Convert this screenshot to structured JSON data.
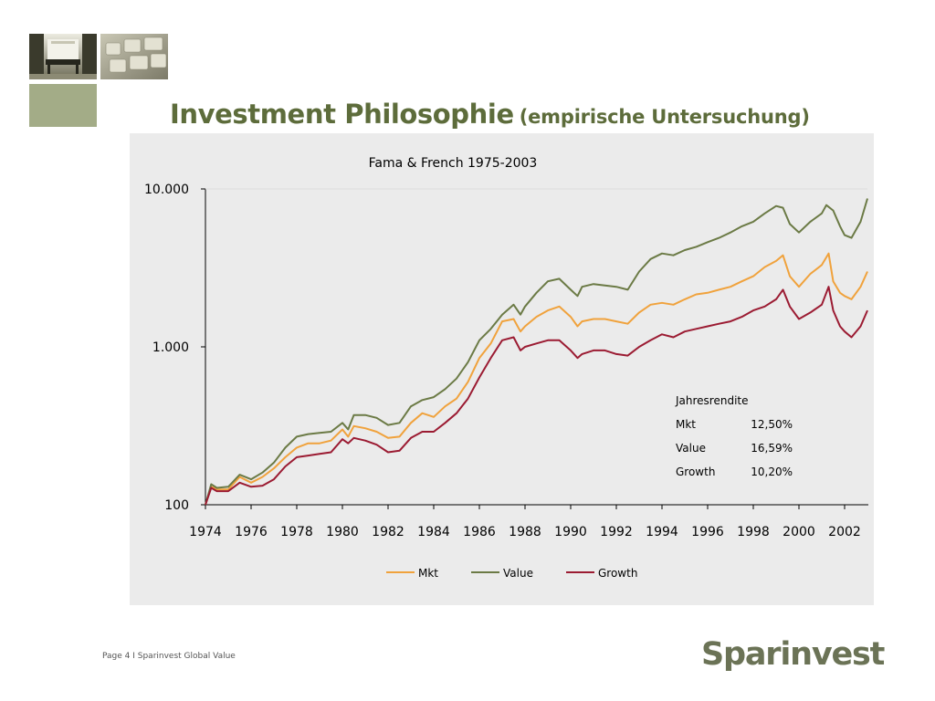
{
  "header": {
    "title": "Investment Philosophie",
    "subtitle": "(empirische Untersuchung)"
  },
  "colors": {
    "title": "#5d6c3b",
    "tile_green": "#a3ac87",
    "panel_bg": "#ebebeb",
    "brand": "#6b7356"
  },
  "chart_data": {
    "type": "line",
    "title": "Fama & French 1975-2003",
    "xlabel": "",
    "ylabel": "",
    "y_scale": "log",
    "ylim": [
      100,
      10000
    ],
    "xlim": [
      1974,
      2003
    ],
    "y_ticks": [
      100,
      1000,
      10000
    ],
    "y_tick_labels": [
      "100",
      "1.000",
      "10.000"
    ],
    "x_ticks": [
      1974,
      1976,
      1978,
      1980,
      1982,
      1984,
      1986,
      1988,
      1990,
      1992,
      1994,
      1996,
      1998,
      2000,
      2002
    ],
    "x_tick_labels": [
      "1974",
      "1976",
      "1978",
      "1980",
      "1982",
      "1984",
      "1986",
      "1988",
      "1990",
      "1992",
      "1994",
      "1996",
      "1998",
      "2000",
      "2002"
    ],
    "grid": false,
    "legend_position": "bottom",
    "series": [
      {
        "name": "Mkt",
        "color": "#f0a23c",
        "points": [
          [
            1974.0,
            100
          ],
          [
            1974.25,
            130
          ],
          [
            1974.5,
            125
          ],
          [
            1975.0,
            125
          ],
          [
            1975.5,
            150
          ],
          [
            1976.0,
            138
          ],
          [
            1976.5,
            150
          ],
          [
            1977.0,
            170
          ],
          [
            1977.5,
            200
          ],
          [
            1978.0,
            230
          ],
          [
            1978.5,
            245
          ],
          [
            1979.0,
            245
          ],
          [
            1979.5,
            255
          ],
          [
            1980.0,
            300
          ],
          [
            1980.25,
            270
          ],
          [
            1980.5,
            315
          ],
          [
            1981.0,
            305
          ],
          [
            1981.5,
            290
          ],
          [
            1982.0,
            265
          ],
          [
            1982.5,
            270
          ],
          [
            1983.0,
            330
          ],
          [
            1983.5,
            380
          ],
          [
            1984.0,
            360
          ],
          [
            1984.5,
            420
          ],
          [
            1985.0,
            470
          ],
          [
            1985.5,
            600
          ],
          [
            1986.0,
            850
          ],
          [
            1986.5,
            1050
          ],
          [
            1987.0,
            1450
          ],
          [
            1987.5,
            1500
          ],
          [
            1987.8,
            1250
          ],
          [
            1988.0,
            1350
          ],
          [
            1988.5,
            1550
          ],
          [
            1989.0,
            1700
          ],
          [
            1989.5,
            1800
          ],
          [
            1990.0,
            1550
          ],
          [
            1990.3,
            1350
          ],
          [
            1990.5,
            1450
          ],
          [
            1991.0,
            1500
          ],
          [
            1991.5,
            1500
          ],
          [
            1992.0,
            1450
          ],
          [
            1992.5,
            1400
          ],
          [
            1993.0,
            1650
          ],
          [
            1993.5,
            1850
          ],
          [
            1994.0,
            1900
          ],
          [
            1994.5,
            1850
          ],
          [
            1995.0,
            2000
          ],
          [
            1995.5,
            2150
          ],
          [
            1996.0,
            2200
          ],
          [
            1996.5,
            2300
          ],
          [
            1997.0,
            2400
          ],
          [
            1997.5,
            2600
          ],
          [
            1998.0,
            2800
          ],
          [
            1998.5,
            3200
          ],
          [
            1999.0,
            3500
          ],
          [
            1999.3,
            3800
          ],
          [
            1999.6,
            2800
          ],
          [
            2000.0,
            2400
          ],
          [
            2000.5,
            2900
          ],
          [
            2001.0,
            3300
          ],
          [
            2001.3,
            3900
          ],
          [
            2001.5,
            2600
          ],
          [
            2001.8,
            2200
          ],
          [
            2002.0,
            2100
          ],
          [
            2002.3,
            2000
          ],
          [
            2002.7,
            2400
          ],
          [
            2003.0,
            3000
          ]
        ]
      },
      {
        "name": "Value",
        "color": "#6b7a45",
        "points": [
          [
            1974.0,
            100
          ],
          [
            1974.25,
            135
          ],
          [
            1974.5,
            128
          ],
          [
            1975.0,
            130
          ],
          [
            1975.5,
            155
          ],
          [
            1976.0,
            145
          ],
          [
            1976.5,
            160
          ],
          [
            1977.0,
            185
          ],
          [
            1977.5,
            230
          ],
          [
            1978.0,
            270
          ],
          [
            1978.5,
            280
          ],
          [
            1979.0,
            285
          ],
          [
            1979.5,
            290
          ],
          [
            1980.0,
            330
          ],
          [
            1980.25,
            300
          ],
          [
            1980.5,
            370
          ],
          [
            1981.0,
            370
          ],
          [
            1981.5,
            355
          ],
          [
            1982.0,
            320
          ],
          [
            1982.5,
            330
          ],
          [
            1983.0,
            420
          ],
          [
            1983.5,
            460
          ],
          [
            1984.0,
            480
          ],
          [
            1984.5,
            540
          ],
          [
            1985.0,
            630
          ],
          [
            1985.5,
            800
          ],
          [
            1986.0,
            1100
          ],
          [
            1986.5,
            1300
          ],
          [
            1987.0,
            1600
          ],
          [
            1987.5,
            1850
          ],
          [
            1987.8,
            1600
          ],
          [
            1988.0,
            1800
          ],
          [
            1988.5,
            2200
          ],
          [
            1989.0,
            2600
          ],
          [
            1989.5,
            2700
          ],
          [
            1990.0,
            2300
          ],
          [
            1990.3,
            2100
          ],
          [
            1990.5,
            2400
          ],
          [
            1991.0,
            2500
          ],
          [
            1991.5,
            2450
          ],
          [
            1992.0,
            2400
          ],
          [
            1992.5,
            2300
          ],
          [
            1993.0,
            3000
          ],
          [
            1993.5,
            3600
          ],
          [
            1994.0,
            3900
          ],
          [
            1994.5,
            3800
          ],
          [
            1995.0,
            4100
          ],
          [
            1995.5,
            4300
          ],
          [
            1996.0,
            4600
          ],
          [
            1996.5,
            4900
          ],
          [
            1997.0,
            5300
          ],
          [
            1997.5,
            5800
          ],
          [
            1998.0,
            6200
          ],
          [
            1998.5,
            7000
          ],
          [
            1999.0,
            7800
          ],
          [
            1999.3,
            7600
          ],
          [
            1999.6,
            6000
          ],
          [
            2000.0,
            5300
          ],
          [
            2000.5,
            6200
          ],
          [
            2001.0,
            7000
          ],
          [
            2001.2,
            7900
          ],
          [
            2001.5,
            7300
          ],
          [
            2001.8,
            5800
          ],
          [
            2002.0,
            5100
          ],
          [
            2002.3,
            4900
          ],
          [
            2002.7,
            6200
          ],
          [
            2003.0,
            8700
          ]
        ]
      },
      {
        "name": "Growth",
        "color": "#9b1b32",
        "points": [
          [
            1974.0,
            100
          ],
          [
            1974.25,
            128
          ],
          [
            1974.5,
            122
          ],
          [
            1975.0,
            122
          ],
          [
            1975.5,
            138
          ],
          [
            1976.0,
            130
          ],
          [
            1976.5,
            132
          ],
          [
            1977.0,
            145
          ],
          [
            1977.5,
            175
          ],
          [
            1978.0,
            200
          ],
          [
            1978.5,
            205
          ],
          [
            1979.0,
            210
          ],
          [
            1979.5,
            215
          ],
          [
            1980.0,
            260
          ],
          [
            1980.25,
            245
          ],
          [
            1980.5,
            265
          ],
          [
            1981.0,
            255
          ],
          [
            1981.5,
            240
          ],
          [
            1982.0,
            215
          ],
          [
            1982.5,
            220
          ],
          [
            1983.0,
            265
          ],
          [
            1983.5,
            290
          ],
          [
            1984.0,
            290
          ],
          [
            1984.5,
            330
          ],
          [
            1985.0,
            380
          ],
          [
            1985.5,
            470
          ],
          [
            1986.0,
            640
          ],
          [
            1986.5,
            850
          ],
          [
            1987.0,
            1100
          ],
          [
            1987.5,
            1150
          ],
          [
            1987.8,
            950
          ],
          [
            1988.0,
            1000
          ],
          [
            1988.5,
            1050
          ],
          [
            1989.0,
            1100
          ],
          [
            1989.5,
            1100
          ],
          [
            1990.0,
            950
          ],
          [
            1990.3,
            850
          ],
          [
            1990.5,
            900
          ],
          [
            1991.0,
            950
          ],
          [
            1991.5,
            950
          ],
          [
            1992.0,
            900
          ],
          [
            1992.5,
            880
          ],
          [
            1993.0,
            1000
          ],
          [
            1993.5,
            1100
          ],
          [
            1994.0,
            1200
          ],
          [
            1994.5,
            1150
          ],
          [
            1995.0,
            1250
          ],
          [
            1995.5,
            1300
          ],
          [
            1996.0,
            1350
          ],
          [
            1996.5,
            1400
          ],
          [
            1997.0,
            1450
          ],
          [
            1997.5,
            1550
          ],
          [
            1998.0,
            1700
          ],
          [
            1998.5,
            1800
          ],
          [
            1999.0,
            2000
          ],
          [
            1999.3,
            2300
          ],
          [
            1999.6,
            1800
          ],
          [
            2000.0,
            1500
          ],
          [
            2000.5,
            1650
          ],
          [
            2001.0,
            1850
          ],
          [
            2001.3,
            2400
          ],
          [
            2001.5,
            1700
          ],
          [
            2001.8,
            1350
          ],
          [
            2002.0,
            1250
          ],
          [
            2002.3,
            1150
          ],
          [
            2002.7,
            1350
          ],
          [
            2003.0,
            1700
          ]
        ]
      }
    ],
    "annotation": {
      "heading": "Jahresrendite",
      "rows": [
        {
          "label": "Mkt",
          "value": "12,50%"
        },
        {
          "label": "Value",
          "value": "16,59%"
        },
        {
          "label": "Growth",
          "value": "10,20%"
        }
      ]
    }
  },
  "footer": {
    "text": "Page 4  I  Sparinvest Global Value",
    "brand": "Sparinvest"
  }
}
